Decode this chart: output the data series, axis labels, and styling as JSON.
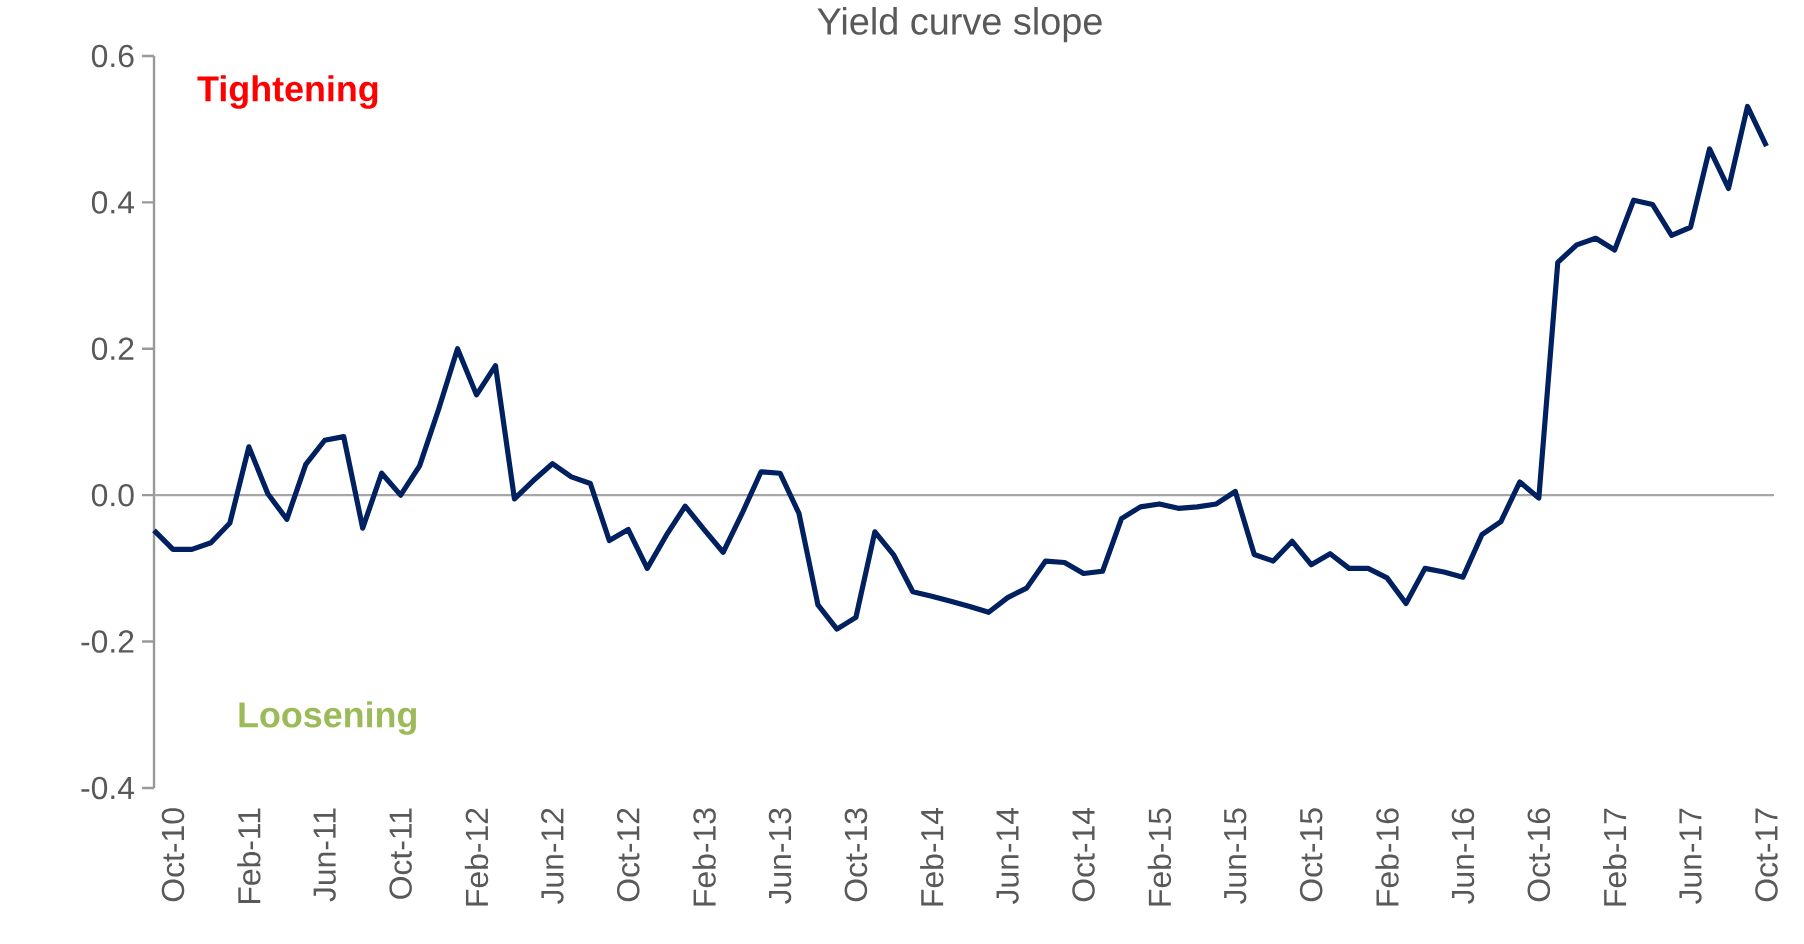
{
  "chart_data": {
    "type": "line",
    "title": "Yield curve slope",
    "categories": [
      null,
      "Oct-10",
      null,
      null,
      null,
      "Feb-11",
      null,
      null,
      null,
      "Jun-11",
      null,
      null,
      null,
      "Oct-11",
      null,
      null,
      null,
      "Feb-12",
      null,
      null,
      null,
      "Jun-12",
      null,
      null,
      null,
      "Oct-12",
      null,
      null,
      null,
      "Feb-13",
      null,
      null,
      null,
      "Jun-13",
      null,
      null,
      null,
      "Oct-13",
      null,
      null,
      null,
      "Feb-14",
      null,
      null,
      null,
      "Jun-14",
      null,
      null,
      null,
      "Oct-14",
      null,
      null,
      null,
      "Feb-15",
      null,
      null,
      null,
      "Jun-15",
      null,
      null,
      null,
      "Oct-15",
      null,
      null,
      null,
      "Feb-16",
      null,
      null,
      null,
      "Jun-16",
      null,
      null,
      null,
      "Oct-16",
      null,
      null,
      null,
      "Feb-17",
      null,
      null,
      null,
      "Jun-17",
      null,
      null,
      null,
      "Oct-17"
    ],
    "series": [
      {
        "color": "#002060",
        "values": [
          -0.048,
          -0.074,
          -0.074,
          -0.065,
          -0.038,
          0.066,
          0.002,
          -0.033,
          0.042,
          0.075,
          0.08,
          -0.045,
          0.03,
          0.0,
          0.04,
          0.117,
          0.2,
          0.137,
          0.177,
          -0.005,
          0.02,
          0.043,
          0.025,
          0.016,
          -0.062,
          -0.047,
          -0.1,
          -0.055,
          -0.015,
          -0.047,
          -0.078,
          -0.025,
          0.032,
          0.03,
          -0.025,
          -0.15,
          -0.183,
          -0.167,
          -0.05,
          -0.082,
          -0.132,
          -0.138,
          -0.145,
          -0.152,
          -0.16,
          -0.14,
          -0.127,
          -0.09,
          -0.092,
          -0.107,
          -0.104,
          -0.032,
          -0.016,
          -0.012,
          -0.018,
          -0.016,
          -0.012,
          0.005,
          -0.081,
          -0.09,
          -0.063,
          -0.095,
          -0.08,
          -0.1,
          -0.1,
          -0.113,
          -0.148,
          -0.1,
          -0.105,
          -0.112,
          -0.054,
          -0.036,
          0.018,
          -0.004,
          0.318,
          0.342,
          0.351,
          0.335,
          0.403,
          0.397,
          0.355,
          0.366,
          0.473,
          0.419,
          0.531,
          0.477
        ]
      }
    ],
    "ylim": [
      -0.4,
      0.6
    ],
    "yticks": [
      -0.4,
      -0.2,
      {
        "value": 0,
        "label": "0.0"
      },
      0.2,
      0.4,
      0.6
    ],
    "annotations": [
      "Tightening",
      "Loosening"
    ],
    "ref_lines": [
      {
        "axis": "y",
        "value": 0,
        "color": "#a6a6a6"
      }
    ],
    "marker": "none",
    "line_style": "solid"
  }
}
